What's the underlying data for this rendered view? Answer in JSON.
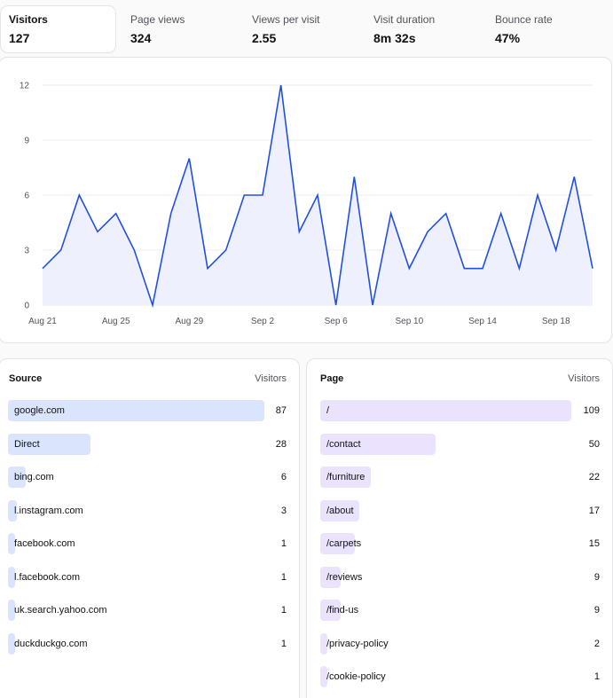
{
  "stats": [
    {
      "label": "Visitors",
      "value": "127",
      "active": true
    },
    {
      "label": "Page views",
      "value": "324",
      "active": false
    },
    {
      "label": "Views per visit",
      "value": "2.55",
      "active": false
    },
    {
      "label": "Visit duration",
      "value": "8m 32s",
      "active": false
    },
    {
      "label": "Bounce rate",
      "value": "47%",
      "active": false
    }
  ],
  "chart_data": {
    "type": "area",
    "x_ticks": [
      "Aug 21",
      "Aug 25",
      "Aug 29",
      "Sep 2",
      "Sep 6",
      "Sep 10",
      "Sep 14",
      "Sep 18"
    ],
    "y_ticks": [
      0,
      3,
      6,
      9,
      12
    ],
    "ylim": [
      0,
      12
    ],
    "x_start": "Aug 21",
    "x_end": "Sep 20",
    "values": [
      2,
      3,
      6,
      4,
      5,
      3,
      0,
      5,
      8,
      2,
      3,
      6,
      6,
      12,
      4,
      6,
      0,
      7,
      0,
      5,
      2,
      4,
      5,
      2,
      2,
      5,
      2,
      6,
      3,
      7,
      2
    ],
    "grid": true,
    "line_color": "#2150e0",
    "fill_color": "#eef1fd"
  },
  "source_panel": {
    "title": "Source",
    "column": "Visitors",
    "rows": [
      {
        "label": "google.com",
        "value": 87
      },
      {
        "label": "Direct",
        "value": 28
      },
      {
        "label": "bing.com",
        "value": 6
      },
      {
        "label": "l.instagram.com",
        "value": 3
      },
      {
        "label": "facebook.com",
        "value": 1
      },
      {
        "label": "l.facebook.com",
        "value": 1
      },
      {
        "label": "uk.search.yahoo.com",
        "value": 1
      },
      {
        "label": "duckduckgo.com",
        "value": 1
      }
    ]
  },
  "page_panel": {
    "title": "Page",
    "column": "Visitors",
    "rows": [
      {
        "label": "/",
        "value": 109
      },
      {
        "label": "/contact",
        "value": 50
      },
      {
        "label": "/furniture",
        "value": 22
      },
      {
        "label": "/about",
        "value": 17
      },
      {
        "label": "/carpets",
        "value": 15
      },
      {
        "label": "/reviews",
        "value": 9
      },
      {
        "label": "/find-us",
        "value": 9
      },
      {
        "label": "/privacy-policy",
        "value": 2
      },
      {
        "label": "/cookie-policy",
        "value": 1
      }
    ]
  }
}
